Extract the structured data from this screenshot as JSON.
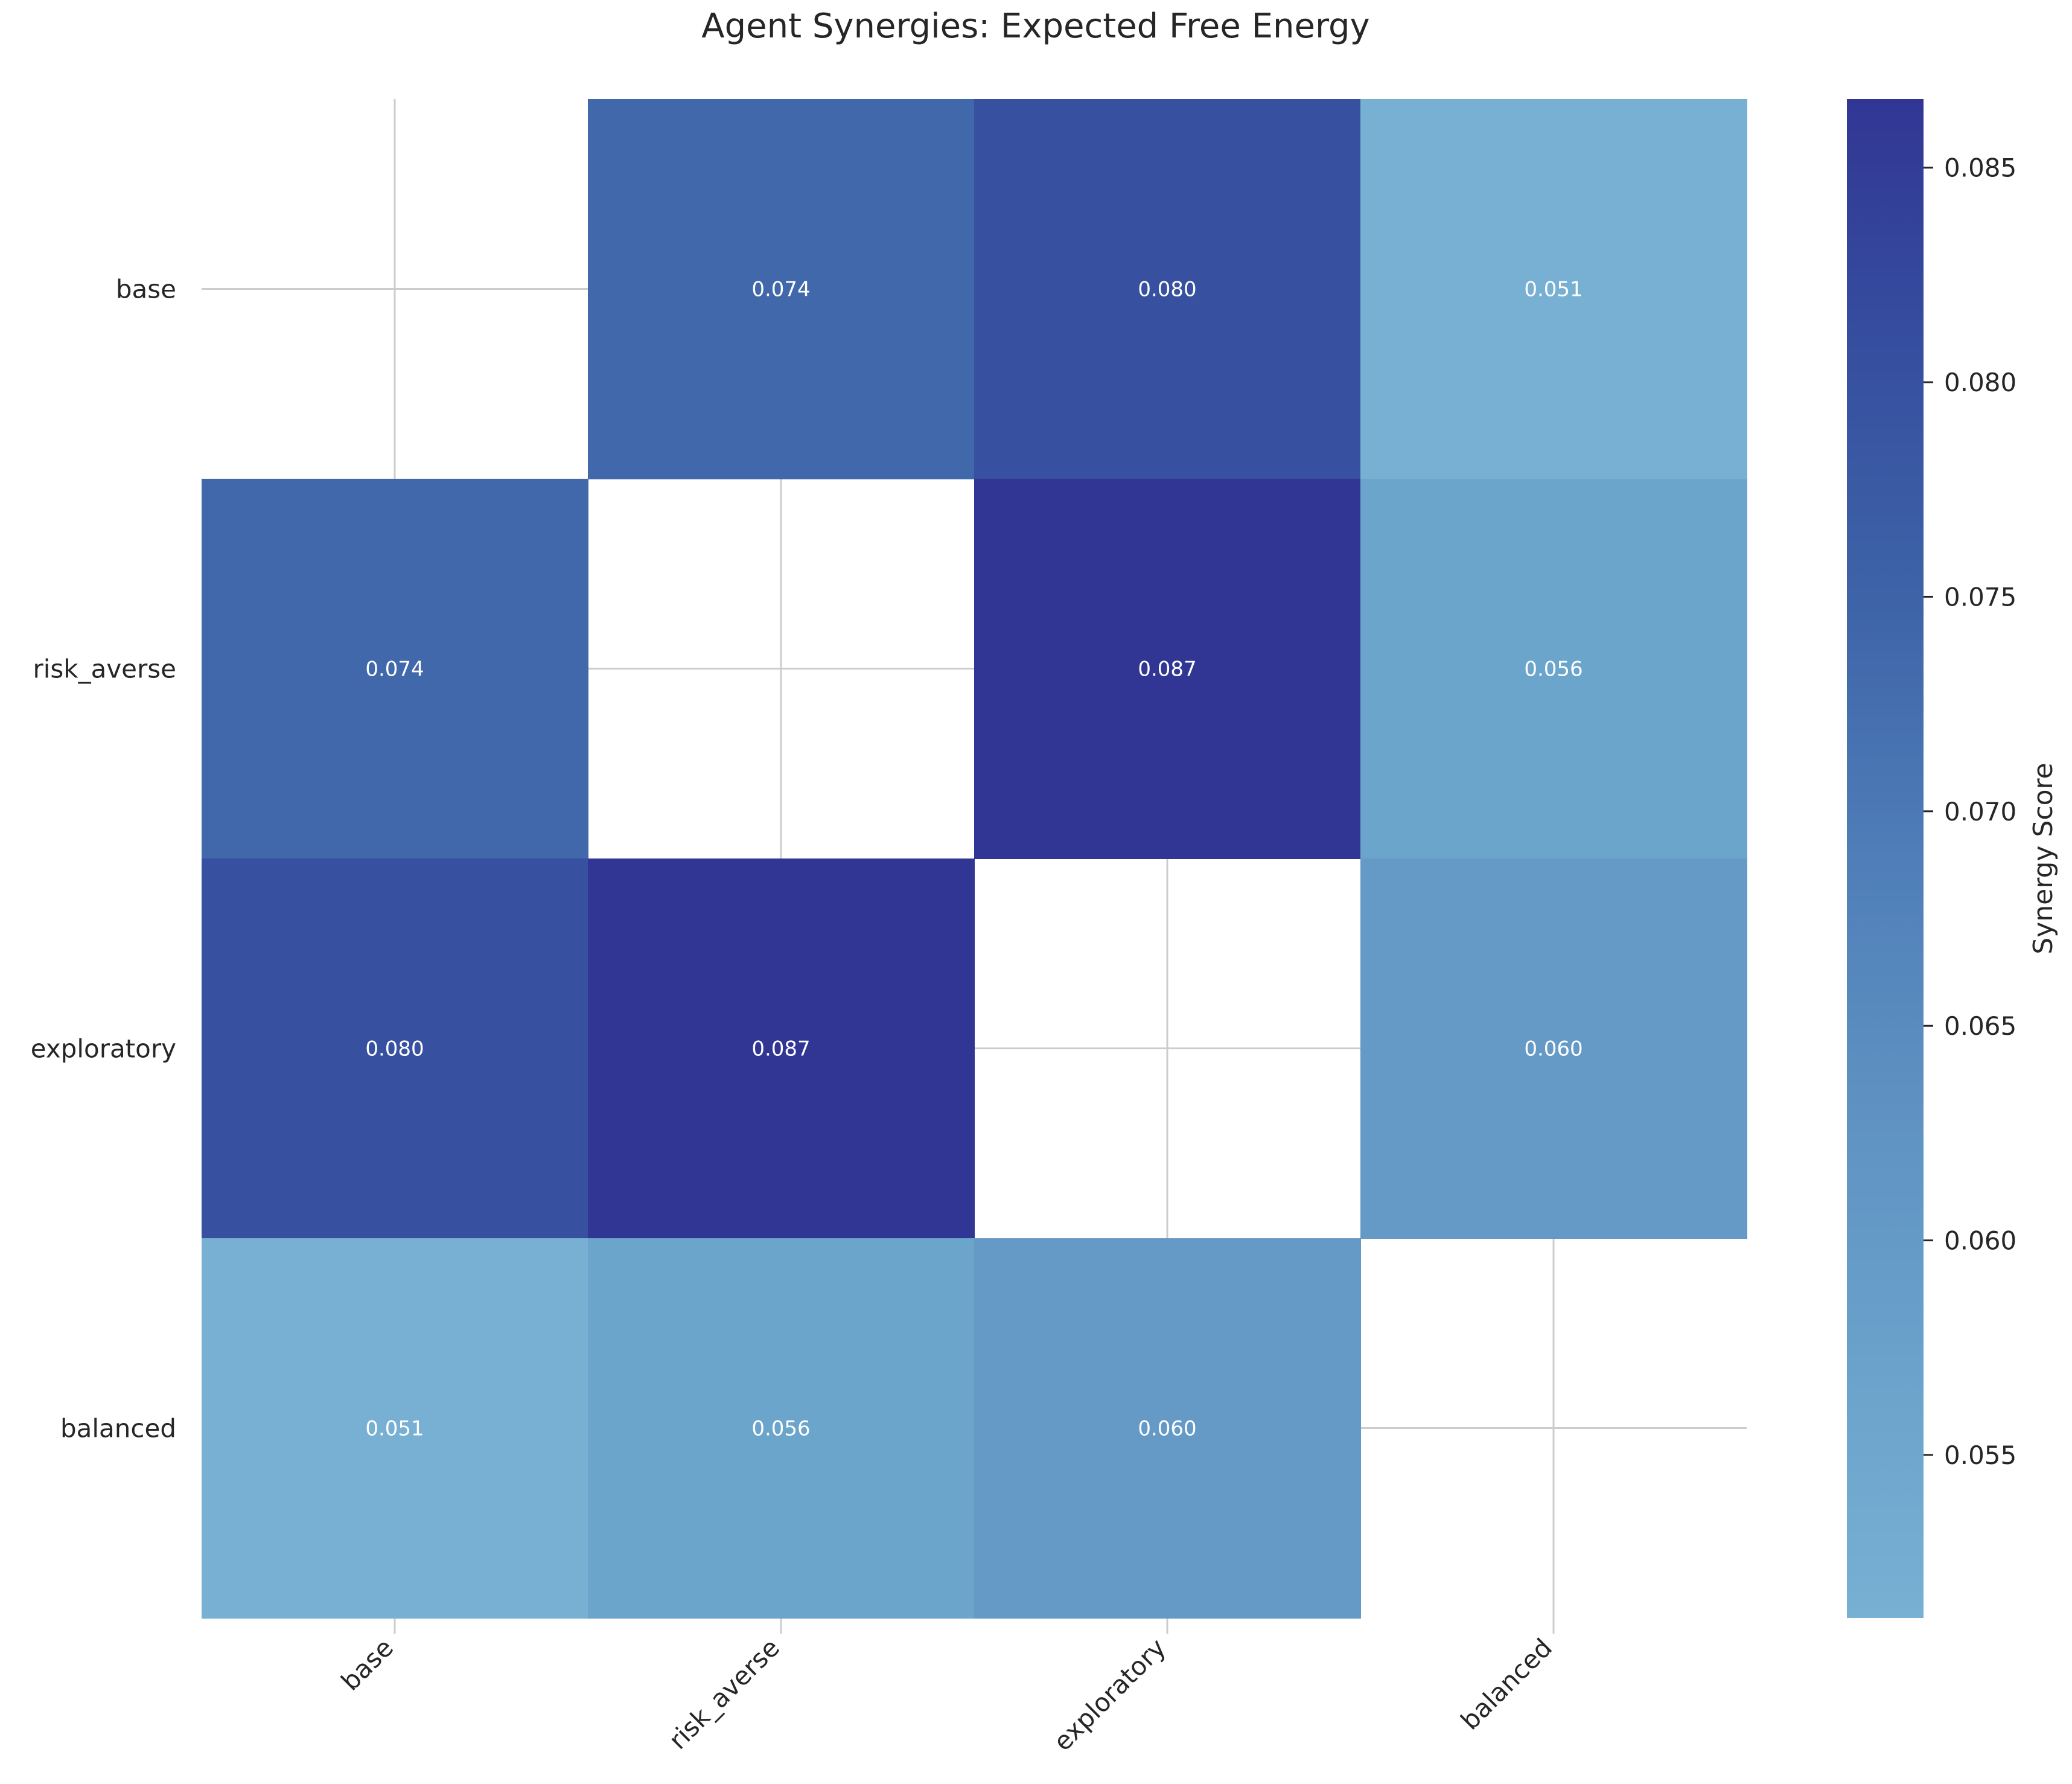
{
  "chart_data": {
    "type": "heatmap",
    "title": "Agent Synergies: Expected Free Energy",
    "row_labels": [
      "base",
      "risk_averse",
      "exploratory",
      "balanced"
    ],
    "col_labels": [
      "base",
      "risk_averse",
      "exploratory",
      "balanced"
    ],
    "values": [
      [
        null,
        0.074,
        0.08,
        0.051
      ],
      [
        0.074,
        null,
        0.087,
        0.056
      ],
      [
        0.08,
        0.087,
        null,
        0.06
      ],
      [
        0.051,
        0.056,
        0.06,
        null
      ]
    ],
    "annotations": [
      [
        null,
        "0.074",
        "0.080",
        "0.051"
      ],
      [
        "0.074",
        null,
        "0.087",
        "0.056"
      ],
      [
        "0.080",
        "0.087",
        null,
        "0.060"
      ],
      [
        "0.051",
        "0.056",
        "0.060",
        null
      ]
    ],
    "colorbar": {
      "label": "Synergy Score",
      "vmin": 0.0512,
      "vmax": 0.0866,
      "ticks": [
        0.055,
        0.06,
        0.065,
        0.07,
        0.075,
        0.08,
        0.085
      ],
      "tick_labels": [
        "0.055",
        "0.060",
        "0.065",
        "0.070",
        "0.075",
        "0.080",
        "0.085"
      ],
      "colors": [
        "#77b0d3",
        "#6aa2cb",
        "#5f92c2",
        "#4f7eb8",
        "#3e64a8",
        "#364f9f",
        "#313694"
      ]
    },
    "grid": true,
    "masked_cell_color": "#ffffff",
    "grid_color": "#cccccc",
    "cell_text_color": "#ffffff",
    "text_color": "#262626"
  }
}
